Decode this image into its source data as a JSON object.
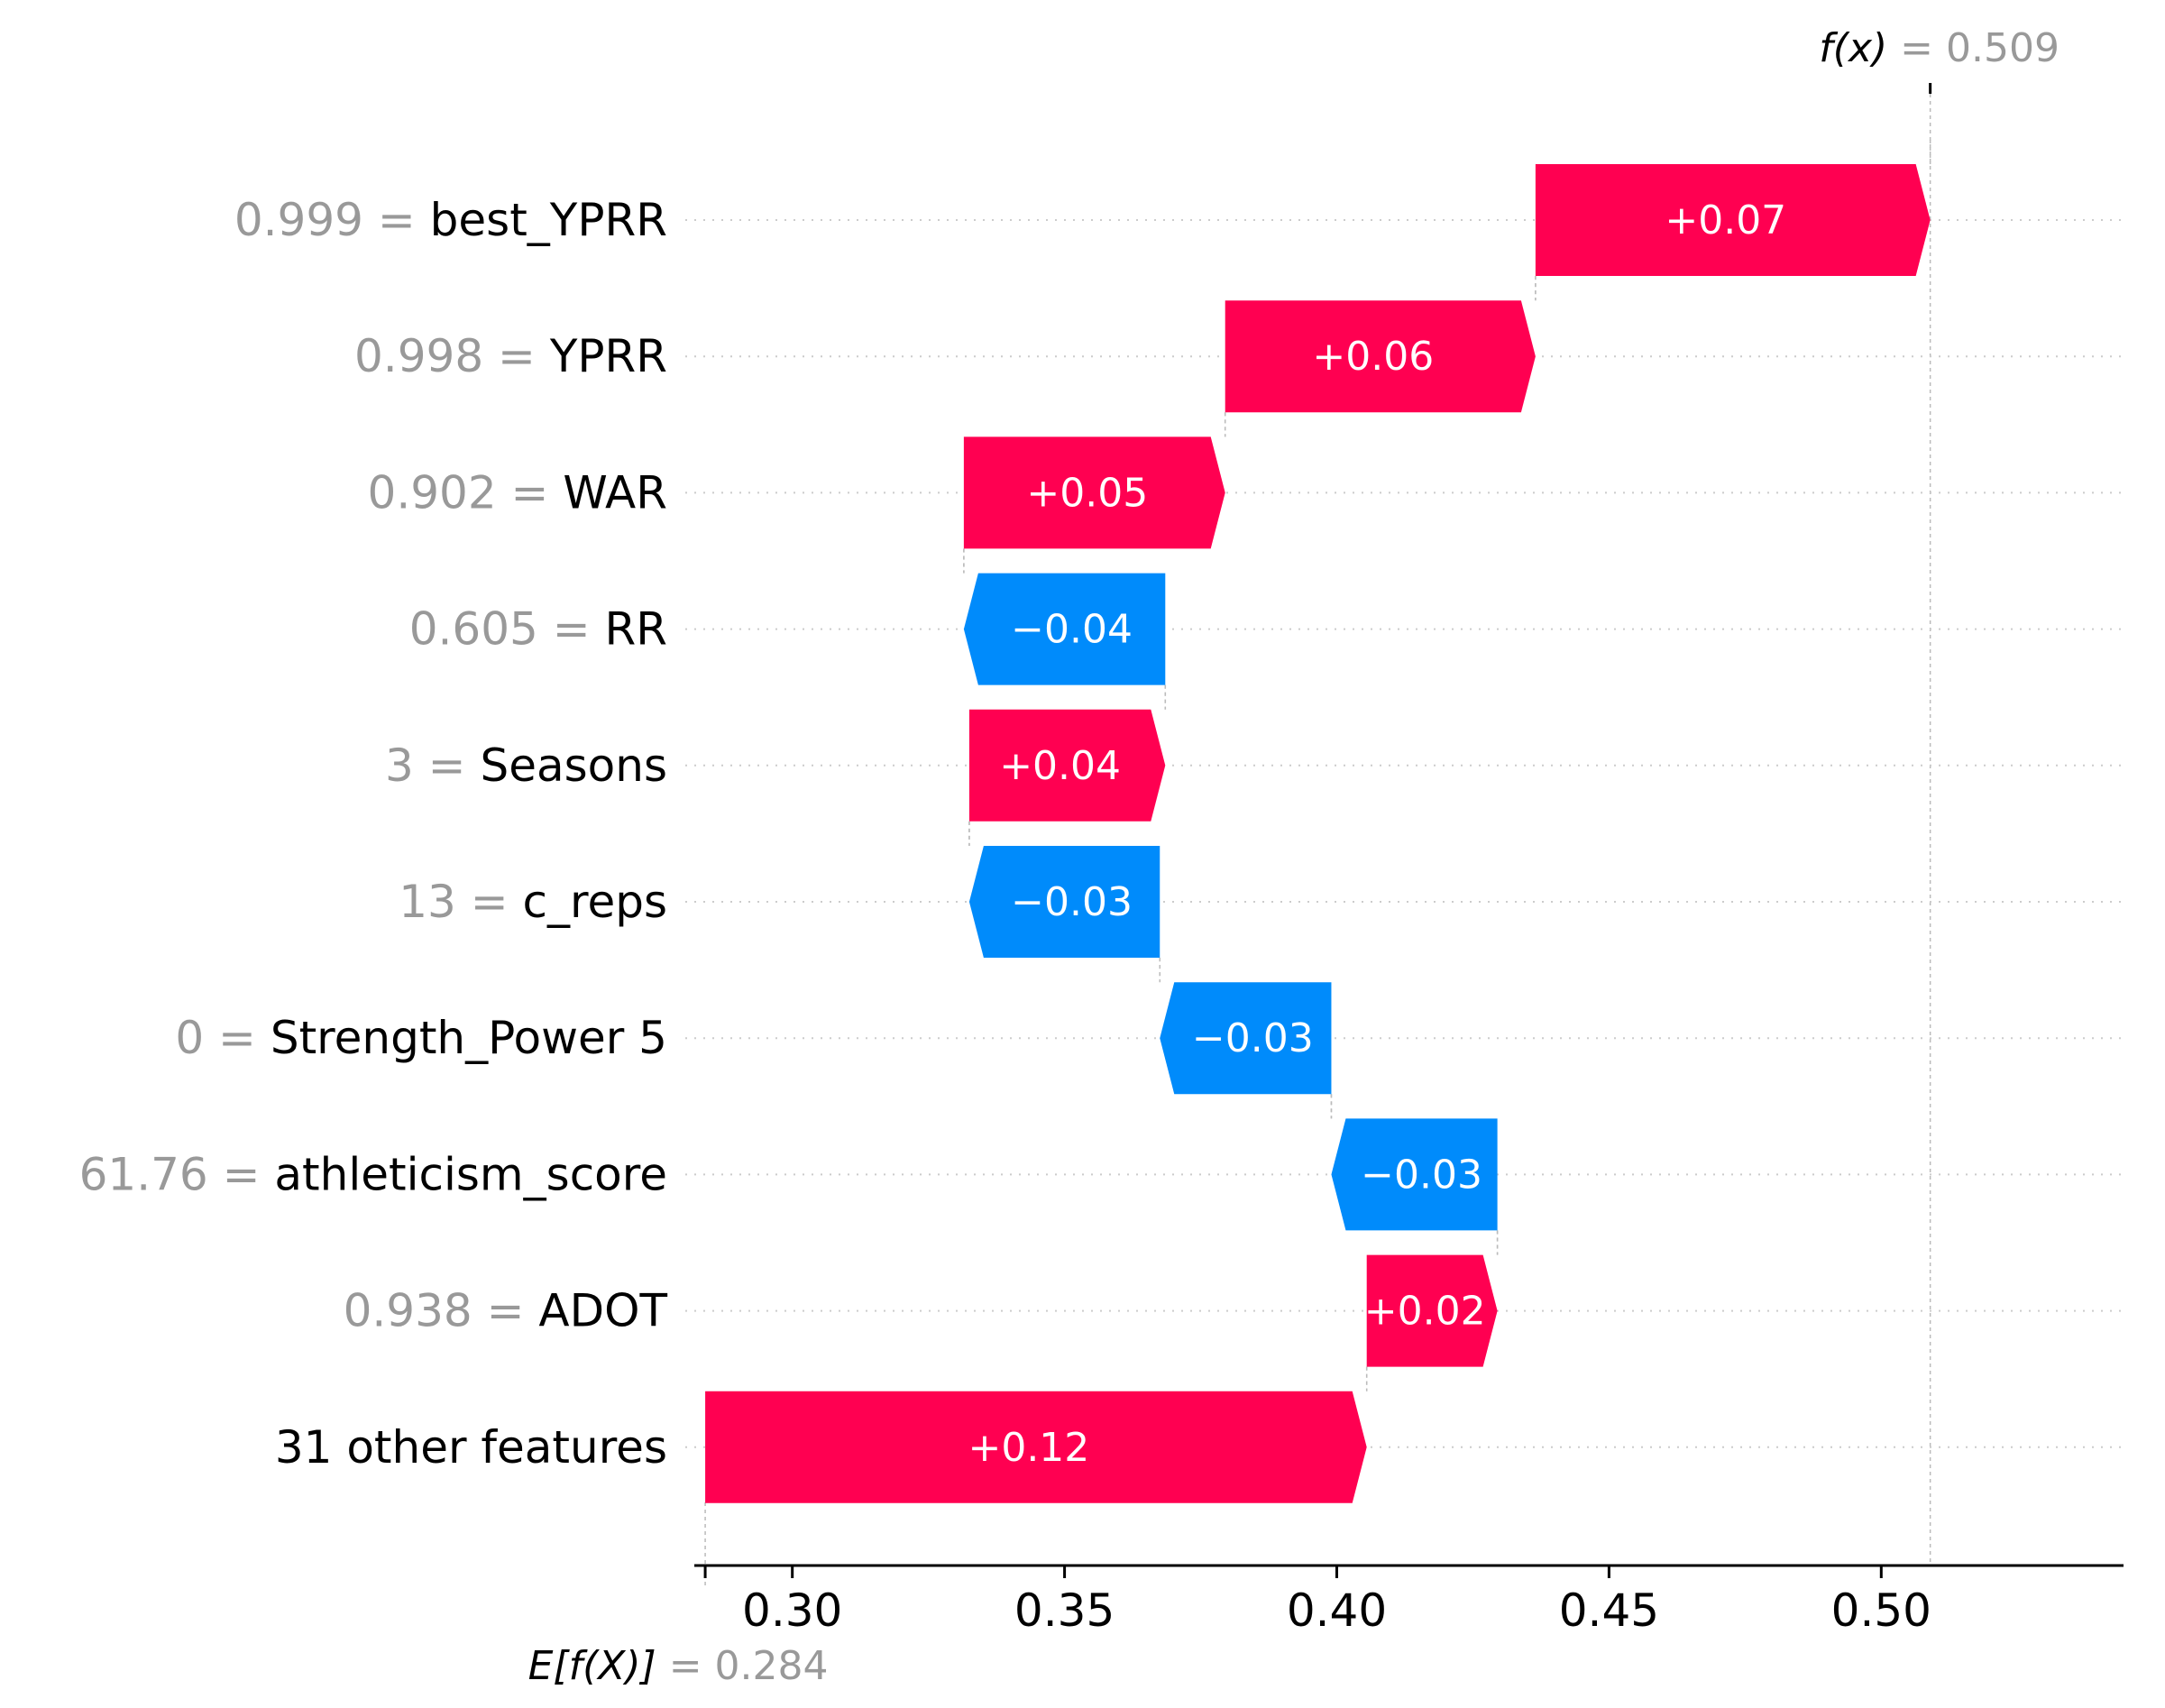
{
  "chart_data": {
    "type": "waterfall",
    "title": "",
    "xlabel": "",
    "ylabel": "",
    "base_value": 0.284,
    "base_label": "E[f(X)]",
    "base_value_text": "= 0.284",
    "output_value": 0.509,
    "output_label": "f(x)",
    "output_value_text": "= 0.509",
    "xlim": [
      0.282,
      0.5445
    ],
    "xticks": [
      0.3,
      0.35,
      0.4,
      0.45,
      0.5
    ],
    "xtick_labels": [
      "0.30",
      "0.35",
      "0.40",
      "0.45",
      "0.50"
    ],
    "features": [
      {
        "value_text": "0.999",
        "name": "best_YPRR",
        "start": 0.4365,
        "end": 0.509,
        "label": "+0.07"
      },
      {
        "value_text": "0.998",
        "name": "YPRR",
        "start": 0.3795,
        "end": 0.4365,
        "label": "+0.06"
      },
      {
        "value_text": "0.902",
        "name": "WAR",
        "start": 0.3315,
        "end": 0.3795,
        "label": "+0.05"
      },
      {
        "value_text": "0.605",
        "name": "RR",
        "start": 0.3685,
        "end": 0.3315,
        "label": "−0.04"
      },
      {
        "value_text": "3",
        "name": "Seasons",
        "start": 0.3325,
        "end": 0.3685,
        "label": "+0.04"
      },
      {
        "value_text": "13",
        "name": "c_reps",
        "start": 0.3675,
        "end": 0.3325,
        "label": "−0.03"
      },
      {
        "value_text": "0",
        "name": "Strength_Power 5",
        "start": 0.399,
        "end": 0.3675,
        "label": "−0.03"
      },
      {
        "value_text": "61.76",
        "name": "athleticism_score",
        "start": 0.4295,
        "end": 0.399,
        "label": "−0.03"
      },
      {
        "value_text": "0.938",
        "name": "ADOT",
        "start": 0.4055,
        "end": 0.4295,
        "label": "+0.02"
      },
      {
        "value_text": "",
        "name": "31 other features",
        "start": 0.284,
        "end": 0.4055,
        "label": "+0.12"
      }
    ],
    "colors": {
      "positive": "#ff0051",
      "negative": "#008bfb",
      "value_text": "#999999",
      "guide": "#bbbbbb",
      "axis": "#000000"
    },
    "grid": false
  }
}
